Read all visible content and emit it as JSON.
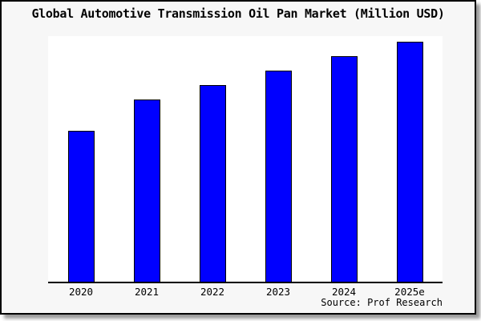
{
  "frame": {
    "background": "#f7f7f7",
    "border_color": "#000000",
    "shadow_color": "#9a9a9a"
  },
  "chart_data": {
    "type": "bar",
    "title": "Global Automotive Transmission Oil Pan Market (Million USD)",
    "categories": [
      "2020",
      "2021",
      "2022",
      "2023",
      "2024",
      "2025e"
    ],
    "values": [
      63,
      76,
      82,
      88,
      94,
      100
    ],
    "value_note": "No y-axis or tick labels are shown; values are relative bar heights indexed to 2025e = 100",
    "xlabel": "",
    "ylabel": "",
    "legend": false,
    "grid": false,
    "bar_color": "#0000ff",
    "bar_border_color": "#000000",
    "plot_background": "#ffffff"
  },
  "source": {
    "label": "Source: Prof Research"
  }
}
